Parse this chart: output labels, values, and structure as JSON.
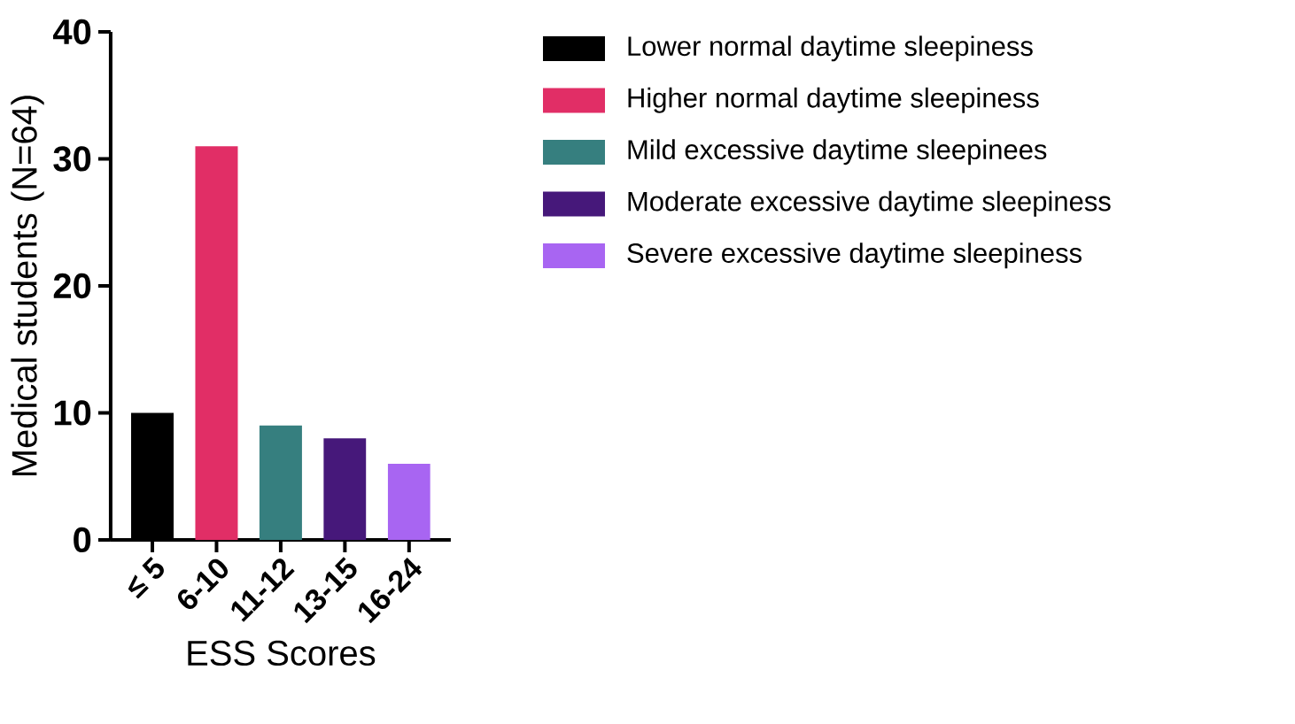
{
  "chart_data": {
    "type": "bar",
    "xlabel": "ESS Scores",
    "ylabel": "Medical students (N=64)",
    "categories": [
      "≤ 5",
      "6-10",
      "11-12",
      "13-15",
      "16-24"
    ],
    "series": [
      {
        "name": "Lower normal daytime sleepiness",
        "color": "#000000",
        "values": [
          10,
          null,
          null,
          null,
          null
        ]
      },
      {
        "name": "Higher normal daytime sleepiness",
        "color": "#e12e66",
        "values": [
          null,
          31,
          null,
          null,
          null
        ]
      },
      {
        "name": "Mild excessive daytime sleepinees",
        "color": "#367f7f",
        "values": [
          null,
          null,
          9,
          null,
          null
        ]
      },
      {
        "name": "Moderate excessive daytime sleepiness",
        "color": "#46187a",
        "values": [
          null,
          null,
          null,
          8,
          null
        ]
      },
      {
        "name": "Severe excessive daytime sleepiness",
        "color": "#a865f2",
        "values": [
          null,
          null,
          null,
          null,
          6
        ]
      }
    ],
    "ylim": [
      0,
      40
    ],
    "yticks": [
      0,
      10,
      20,
      30,
      40
    ],
    "grid": false,
    "legend": "right"
  }
}
